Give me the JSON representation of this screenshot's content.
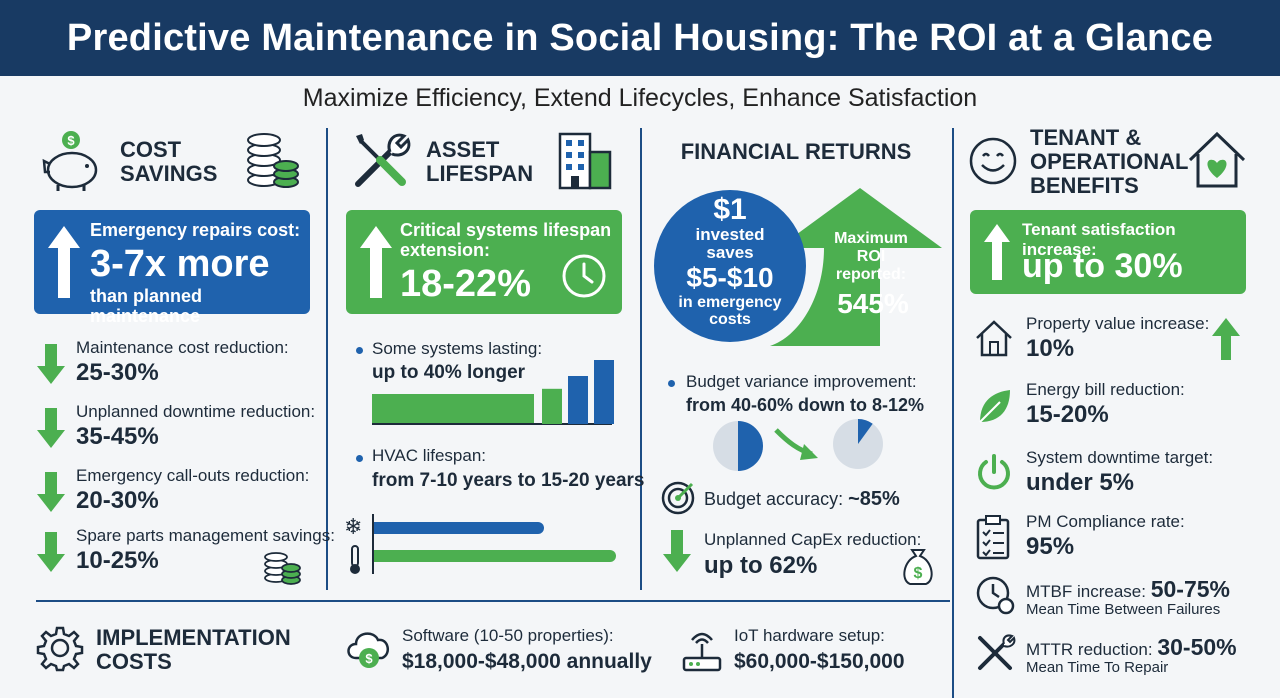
{
  "header": {
    "title": "Predictive Maintenance in Social Housing: The ROI at a Glance"
  },
  "subtitle": "Maximize Efficiency, Extend Lifecycles, Enhance Satisfaction",
  "colors": {
    "navy": "#183a63",
    "blue": "#1f62ad",
    "green": "#4caf50",
    "gray": "#d6dde5"
  },
  "cost_savings": {
    "title_line1": "COST",
    "title_line2": "SAVINGS",
    "banner_top": "Emergency repairs cost:",
    "banner_big": "3-7x more",
    "banner_bottom": "than planned maintenance",
    "stats": [
      {
        "label": "Maintenance cost reduction:",
        "value": "25-30%"
      },
      {
        "label": "Unplanned downtime reduction:",
        "value": "35-45%"
      },
      {
        "label": "Emergency call-outs reduction:",
        "value": "20-30%"
      },
      {
        "label": "Spare parts management savings:",
        "value": "10-25%"
      }
    ]
  },
  "asset_lifespan": {
    "title_line1": "ASSET",
    "title_line2": "LIFESPAN",
    "banner_top_1": "Critical systems lifespan",
    "banner_top_2": "extension:",
    "banner_big": "18-22%",
    "item1_label": "Some systems lasting:",
    "item1_value": "up to 40% longer",
    "item2_label": "HVAC lifespan:",
    "item2_value": "from 7-10 years to 15-20 years",
    "bar_levels": [
      0.55,
      0.75,
      1.0
    ]
  },
  "financial_returns": {
    "title": "FINANCIAL RETURNS",
    "circle_l1": "$1",
    "circle_l2": "invested",
    "circle_l3": "saves",
    "circle_l4": "$5-$10",
    "circle_l5": "in emergency",
    "circle_l6": "costs",
    "arrow_l1": "Maximum",
    "arrow_l2": "ROI",
    "arrow_l3": "reported:",
    "arrow_big": "545%",
    "variance_label": "Budget variance improvement:",
    "variance_value": "from 40-60% down to 8-12%",
    "pie_before": 0.5,
    "pie_after": 0.1,
    "accuracy_label": "Budget accuracy:",
    "accuracy_value": "~85%",
    "capex_label": "Unplanned CapEx reduction:",
    "capex_value": "up to 62%"
  },
  "tenant": {
    "title_line1": "TENANT &",
    "title_line2": "OPERATIONAL",
    "title_line3": "BENEFITS",
    "banner_top": "Tenant satisfaction increase:",
    "banner_big": "up to 30%",
    "stats": [
      {
        "label": "Property value increase:",
        "value": "10%"
      },
      {
        "label": "Energy bill reduction:",
        "value": "15-20%"
      },
      {
        "label": "System downtime target:",
        "value": "under 5%"
      },
      {
        "label": "PM Compliance rate:",
        "value": "95%"
      }
    ],
    "mtbf_label": "MTBF increase:",
    "mtbf_value": "50-75%",
    "mtbf_sub": "Mean Time Between Failures",
    "mttr_label": "MTTR reduction:",
    "mttr_value": "30-50%",
    "mttr_sub": "Mean Time To Repair"
  },
  "implementation": {
    "title_line1": "IMPLEMENTATION",
    "title_line2": "COSTS",
    "software_label": "Software (10-50 properties):",
    "software_value": "$18,000-$48,000 annually",
    "iot_label": "IoT hardware setup:",
    "iot_value": "$60,000-$150,000"
  }
}
